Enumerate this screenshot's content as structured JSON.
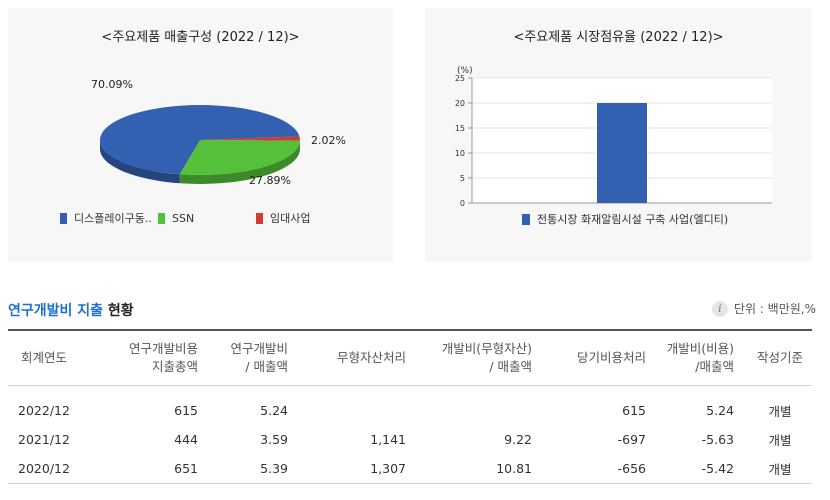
{
  "chart_data": [
    {
      "type": "pie",
      "title": "<주요제품 매출구성 (2022 / 12)>",
      "labels": [
        "디스플레이구동..",
        "SSN",
        "임대사업"
      ],
      "values": [
        70.09,
        27.89,
        2.02
      ],
      "data_labels": [
        "70.09%",
        "27.89%",
        "2.02%"
      ],
      "colors": [
        "#3360b0",
        "#55c03a",
        "#d13b30"
      ],
      "legend": "bottom"
    },
    {
      "type": "bar",
      "title": "<주요제품 시장점유율 (2022 / 12)>",
      "ylabel": "(%)",
      "ylim": [
        0,
        25
      ],
      "yticks": [
        "0",
        "5",
        "10",
        "15",
        "20",
        "25"
      ],
      "categories": [
        "전통시장 화재알림시설 구축 사업(엘디티)"
      ],
      "values": [
        20
      ],
      "color": "#3360b0",
      "legend": "bottom"
    }
  ],
  "table": {
    "title_accent": "연구개발비 지출",
    "title_rest": " 현황",
    "unit": "단위 : 백만원,%",
    "info_icon": "i",
    "headers": [
      "회계연도",
      "연구개발비용\n지출총액",
      "연구개발비\n/ 매출액",
      "무형자산처리",
      "개발비(무형자산)\n/ 매출액",
      "당기비용처리",
      "개발비(비용)\n/매출액",
      "작성기준"
    ],
    "rows": [
      [
        "2022/12",
        "615",
        "5.24",
        "",
        "",
        "615",
        "5.24",
        "개별"
      ],
      [
        "2021/12",
        "444",
        "3.59",
        "1,141",
        "9.22",
        "-697",
        "-5.63",
        "개별"
      ],
      [
        "2020/12",
        "651",
        "5.39",
        "1,307",
        "10.81",
        "-656",
        "-5.42",
        "개별"
      ]
    ]
  }
}
